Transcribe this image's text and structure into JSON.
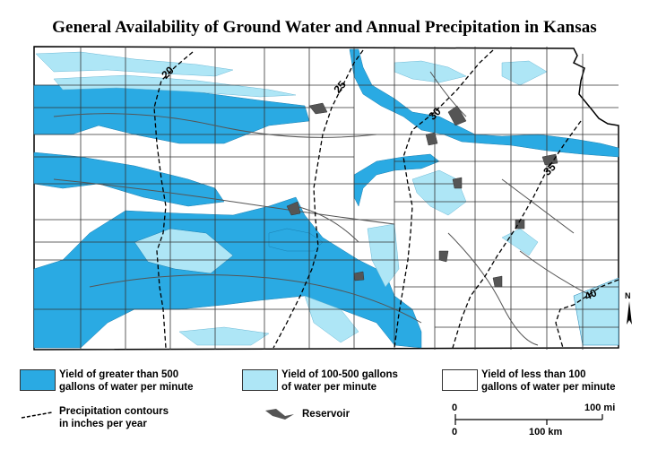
{
  "title": "General Availability of Ground Water and Annual Precipitation in Kansas",
  "colors": {
    "high_yield": "#2aaae3",
    "medium_yield": "#aee6f6",
    "low_yield": "#ffffff",
    "county_lines": "#333333",
    "rivers": "#555555",
    "reservoir": "#555555",
    "contour": "#000000"
  },
  "contours": [
    {
      "label": "20"
    },
    {
      "label": "25"
    },
    {
      "label": "30"
    },
    {
      "label": "35"
    },
    {
      "label": "40"
    }
  ],
  "legend": {
    "high": "Yield of greater than 500\ngallons of water per minute",
    "medium": "Yield of 100-500 gallons\nof water per minute",
    "low": "Yield of less than 100\ngallons of water per minute",
    "contours": "Precipitation contours\nin inches per year",
    "reservoir": "Reservoir"
  },
  "scale": {
    "miles_zero": "0",
    "miles_max": "100 mi",
    "km_zero": "0",
    "km_max": "100 km"
  },
  "north_arrow": "N"
}
